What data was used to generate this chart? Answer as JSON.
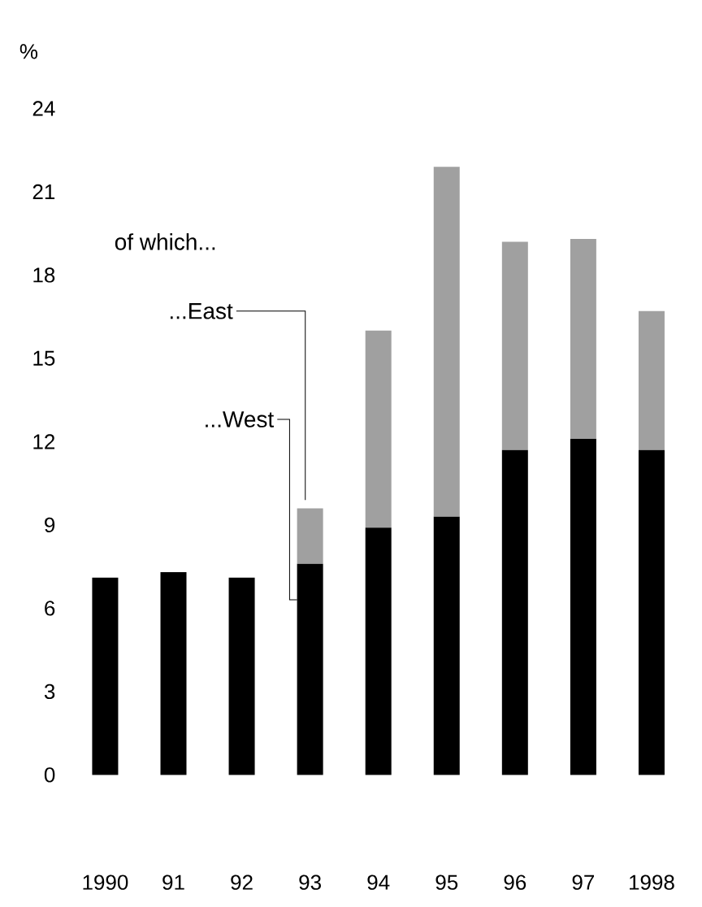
{
  "chart_data": {
    "type": "bar",
    "stacked": true,
    "ylabel": "%",
    "legend_title": "of which...",
    "categories": [
      "1990",
      "91",
      "92",
      "93",
      "94",
      "95",
      "96",
      "97",
      "1998"
    ],
    "series": [
      {
        "name": "...West",
        "color": "#000000",
        "values": [
          7.1,
          7.3,
          7.1,
          7.6,
          8.9,
          9.3,
          11.7,
          12.1,
          11.7
        ]
      },
      {
        "name": "...East",
        "color": "#a0a0a0",
        "values": [
          null,
          null,
          null,
          2.0,
          7.1,
          12.6,
          7.5,
          7.2,
          5.0
        ]
      }
    ],
    "ylim": [
      0,
      24
    ],
    "yticks": [
      0,
      3,
      6,
      9,
      12,
      15,
      18,
      21,
      24
    ],
    "legend": "top left",
    "grid": false
  }
}
